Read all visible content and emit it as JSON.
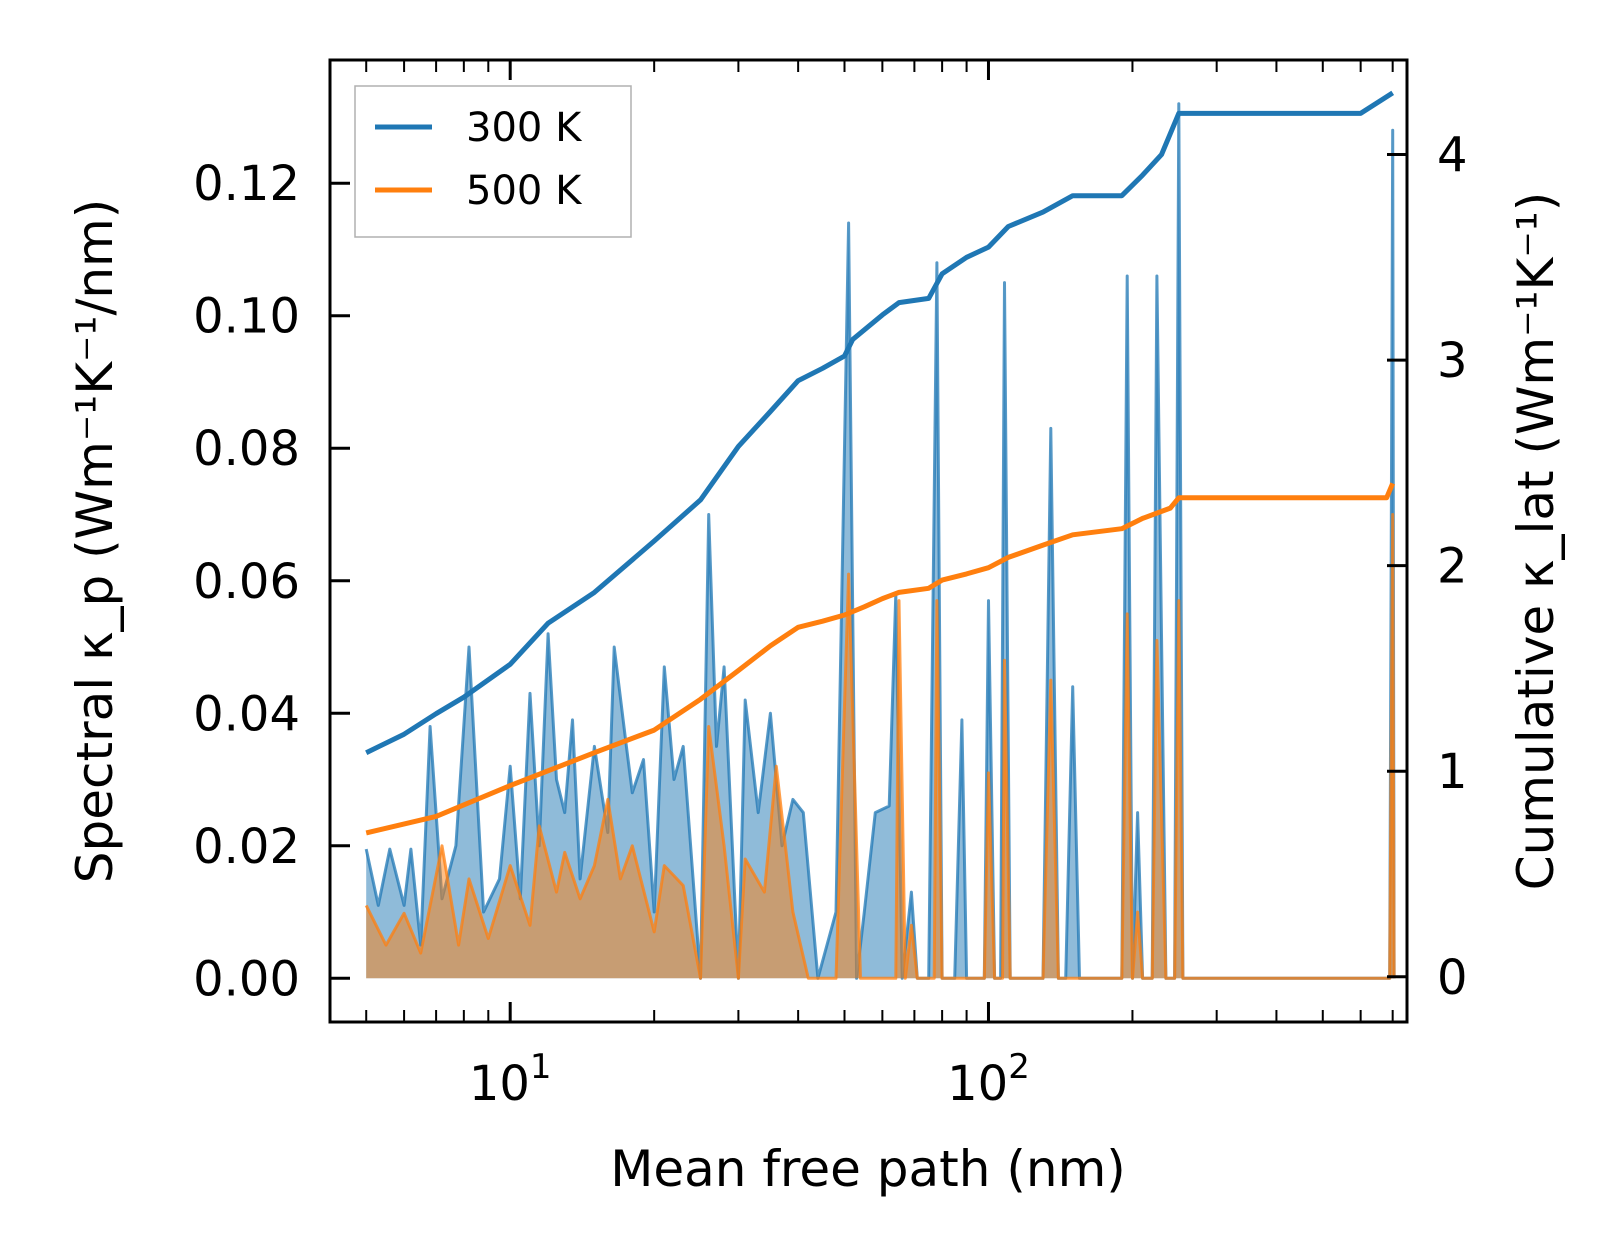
{
  "chart_data": {
    "type": "line",
    "xlabel": "Mean free path (nm)",
    "ylabel": "Spectral κ_p (Wm⁻¹K⁻¹/nm)",
    "y2label": "Cumulative κ_lat (Wm⁻¹K⁻¹)",
    "xscale": "log",
    "xlim": [
      4.2,
      750
    ],
    "ylim": [
      -0.0066,
      0.1386
    ],
    "y2lim": [
      -0.22,
      4.46
    ],
    "legend_position": "top-left",
    "x_tick_labels": [
      {
        "value": 10,
        "label": "10",
        "exp": "1"
      },
      {
        "value": 100,
        "label": "10",
        "exp": "2"
      }
    ],
    "y_tick_labels": [
      {
        "value": 0.0,
        "label": "0.00"
      },
      {
        "value": 0.02,
        "label": "0.02"
      },
      {
        "value": 0.04,
        "label": "0.04"
      },
      {
        "value": 0.06,
        "label": "0.06"
      },
      {
        "value": 0.08,
        "label": "0.08"
      },
      {
        "value": 0.1,
        "label": "0.10"
      },
      {
        "value": 0.12,
        "label": "0.12"
      }
    ],
    "y2_tick_labels": [
      {
        "value": 0,
        "label": "0"
      },
      {
        "value": 1,
        "label": "1"
      },
      {
        "value": 2,
        "label": "2"
      },
      {
        "value": 3,
        "label": "3"
      },
      {
        "value": 4,
        "label": "4"
      }
    ],
    "series": [
      {
        "name": "300 K",
        "color": "#1f77b4",
        "cumulative": [
          [
            5,
            1.09
          ],
          [
            6,
            1.18
          ],
          [
            7,
            1.28
          ],
          [
            8,
            1.36
          ],
          [
            10,
            1.52
          ],
          [
            12,
            1.72
          ],
          [
            15,
            1.87
          ],
          [
            20,
            2.12
          ],
          [
            25,
            2.32
          ],
          [
            30,
            2.58
          ],
          [
            35,
            2.75
          ],
          [
            40,
            2.9
          ],
          [
            45,
            2.96
          ],
          [
            50,
            3.02
          ],
          [
            52,
            3.1
          ],
          [
            60,
            3.22
          ],
          [
            65,
            3.28
          ],
          [
            75,
            3.3
          ],
          [
            80,
            3.42
          ],
          [
            90,
            3.5
          ],
          [
            100,
            3.55
          ],
          [
            110,
            3.65
          ],
          [
            130,
            3.72
          ],
          [
            150,
            3.8
          ],
          [
            190,
            3.8
          ],
          [
            210,
            3.9
          ],
          [
            230,
            4.0
          ],
          [
            250,
            4.2
          ],
          [
            300,
            4.2
          ],
          [
            600,
            4.2
          ],
          [
            700,
            4.3
          ]
        ],
        "spectral": [
          [
            5,
            0.0195
          ],
          [
            5.3,
            0.011
          ],
          [
            5.6,
            0.0195
          ],
          [
            6,
            0.011
          ],
          [
            6.2,
            0.0195
          ],
          [
            6.5,
            0.005
          ],
          [
            6.8,
            0.038
          ],
          [
            7.2,
            0.012
          ],
          [
            7.7,
            0.02
          ],
          [
            8.2,
            0.05
          ],
          [
            8.8,
            0.01
          ],
          [
            9.5,
            0.015
          ],
          [
            10,
            0.032
          ],
          [
            10.5,
            0.012
          ],
          [
            11,
            0.043
          ],
          [
            11.5,
            0.02
          ],
          [
            12,
            0.052
          ],
          [
            12.5,
            0.03
          ],
          [
            13,
            0.025
          ],
          [
            13.5,
            0.039
          ],
          [
            14,
            0.015
          ],
          [
            15,
            0.035
          ],
          [
            16,
            0.022
          ],
          [
            16.5,
            0.05
          ],
          [
            17.5,
            0.035
          ],
          [
            18,
            0.028
          ],
          [
            19,
            0.033
          ],
          [
            20,
            0.01
          ],
          [
            21,
            0.047
          ],
          [
            22,
            0.03
          ],
          [
            23,
            0.035
          ],
          [
            25,
            0.0
          ],
          [
            26,
            0.07
          ],
          [
            27,
            0.035
          ],
          [
            28,
            0.047
          ],
          [
            30,
            0.0
          ],
          [
            31,
            0.042
          ],
          [
            33,
            0.025
          ],
          [
            35,
            0.04
          ],
          [
            37,
            0.02
          ],
          [
            39,
            0.027
          ],
          [
            41,
            0.025
          ],
          [
            44,
            0.0
          ],
          [
            48,
            0.01
          ],
          [
            51,
            0.114
          ],
          [
            53,
            0.0
          ],
          [
            55,
            0.01
          ],
          [
            58,
            0.025
          ],
          [
            62,
            0.026
          ],
          [
            64,
            0.058
          ],
          [
            66,
            0.0
          ],
          [
            69,
            0.013
          ],
          [
            71,
            0.0
          ],
          [
            75,
            0.0
          ],
          [
            78,
            0.108
          ],
          [
            80,
            0.0
          ],
          [
            85,
            0.0
          ],
          [
            88,
            0.039
          ],
          [
            90,
            0.0
          ],
          [
            98,
            0.0
          ],
          [
            100,
            0.057
          ],
          [
            103,
            0.0
          ],
          [
            106,
            0.0
          ],
          [
            108,
            0.105
          ],
          [
            111,
            0.0
          ],
          [
            130,
            0.0
          ],
          [
            135,
            0.083
          ],
          [
            140,
            0.0
          ],
          [
            145,
            0.0
          ],
          [
            150,
            0.044
          ],
          [
            155,
            0.0
          ],
          [
            190,
            0.0
          ],
          [
            195,
            0.106
          ],
          [
            200,
            0.0
          ],
          [
            205,
            0.025
          ],
          [
            210,
            0.0
          ],
          [
            220,
            0.0
          ],
          [
            225,
            0.106
          ],
          [
            235,
            0.0
          ],
          [
            245,
            0.0
          ],
          [
            250,
            0.132
          ],
          [
            255,
            0.0
          ],
          [
            690,
            0.0
          ],
          [
            700,
            0.128
          ],
          [
            705,
            0.0
          ]
        ]
      },
      {
        "name": "500 K",
        "color": "#ff7f0e",
        "cumulative": [
          [
            5,
            0.7
          ],
          [
            7,
            0.78
          ],
          [
            10,
            0.93
          ],
          [
            15,
            1.09
          ],
          [
            20,
            1.2
          ],
          [
            25,
            1.35
          ],
          [
            30,
            1.49
          ],
          [
            35,
            1.61
          ],
          [
            40,
            1.7
          ],
          [
            45,
            1.73
          ],
          [
            50,
            1.76
          ],
          [
            55,
            1.8
          ],
          [
            60,
            1.84
          ],
          [
            65,
            1.87
          ],
          [
            75,
            1.89
          ],
          [
            80,
            1.93
          ],
          [
            90,
            1.96
          ],
          [
            100,
            1.99
          ],
          [
            110,
            2.04
          ],
          [
            130,
            2.1
          ],
          [
            150,
            2.15
          ],
          [
            190,
            2.18
          ],
          [
            210,
            2.23
          ],
          [
            240,
            2.28
          ],
          [
            250,
            2.33
          ],
          [
            680,
            2.33
          ],
          [
            700,
            2.4
          ]
        ],
        "spectral": [
          [
            5,
            0.011
          ],
          [
            5.5,
            0.005
          ],
          [
            6,
            0.0098
          ],
          [
            6.5,
            0.0038
          ],
          [
            7.2,
            0.02
          ],
          [
            7.8,
            0.005
          ],
          [
            8.2,
            0.015
          ],
          [
            9,
            0.006
          ],
          [
            10,
            0.017
          ],
          [
            11,
            0.008
          ],
          [
            11.5,
            0.023
          ],
          [
            12.5,
            0.013
          ],
          [
            13,
            0.019
          ],
          [
            14,
            0.012
          ],
          [
            15,
            0.017
          ],
          [
            16,
            0.027
          ],
          [
            17,
            0.015
          ],
          [
            18,
            0.02
          ],
          [
            20,
            0.007
          ],
          [
            21,
            0.017
          ],
          [
            23,
            0.014
          ],
          [
            25,
            0.0
          ],
          [
            26,
            0.038
          ],
          [
            28,
            0.02
          ],
          [
            30,
            0.0
          ],
          [
            31,
            0.018
          ],
          [
            34,
            0.013
          ],
          [
            36,
            0.032
          ],
          [
            39,
            0.01
          ],
          [
            42,
            0.0
          ],
          [
            48,
            0.0
          ],
          [
            51,
            0.061
          ],
          [
            54,
            0.0
          ],
          [
            64,
            0.0
          ],
          [
            65,
            0.057
          ],
          [
            67,
            0.0
          ],
          [
            69,
            0.008
          ],
          [
            71,
            0.0
          ],
          [
            77,
            0.0
          ],
          [
            78,
            0.057
          ],
          [
            80,
            0.0
          ],
          [
            98,
            0.0
          ],
          [
            100,
            0.031
          ],
          [
            103,
            0.0
          ],
          [
            107,
            0.0
          ],
          [
            108,
            0.048
          ],
          [
            111,
            0.0
          ],
          [
            130,
            0.0
          ],
          [
            135,
            0.045
          ],
          [
            140,
            0.0
          ],
          [
            190,
            0.0
          ],
          [
            195,
            0.055
          ],
          [
            200,
            0.0
          ],
          [
            205,
            0.01
          ],
          [
            210,
            0.0
          ],
          [
            220,
            0.0
          ],
          [
            225,
            0.051
          ],
          [
            235,
            0.0
          ],
          [
            245,
            0.0
          ],
          [
            250,
            0.057
          ],
          [
            255,
            0.0
          ],
          [
            690,
            0.0
          ],
          [
            700,
            0.07
          ],
          [
            705,
            0.0
          ]
        ]
      }
    ]
  }
}
